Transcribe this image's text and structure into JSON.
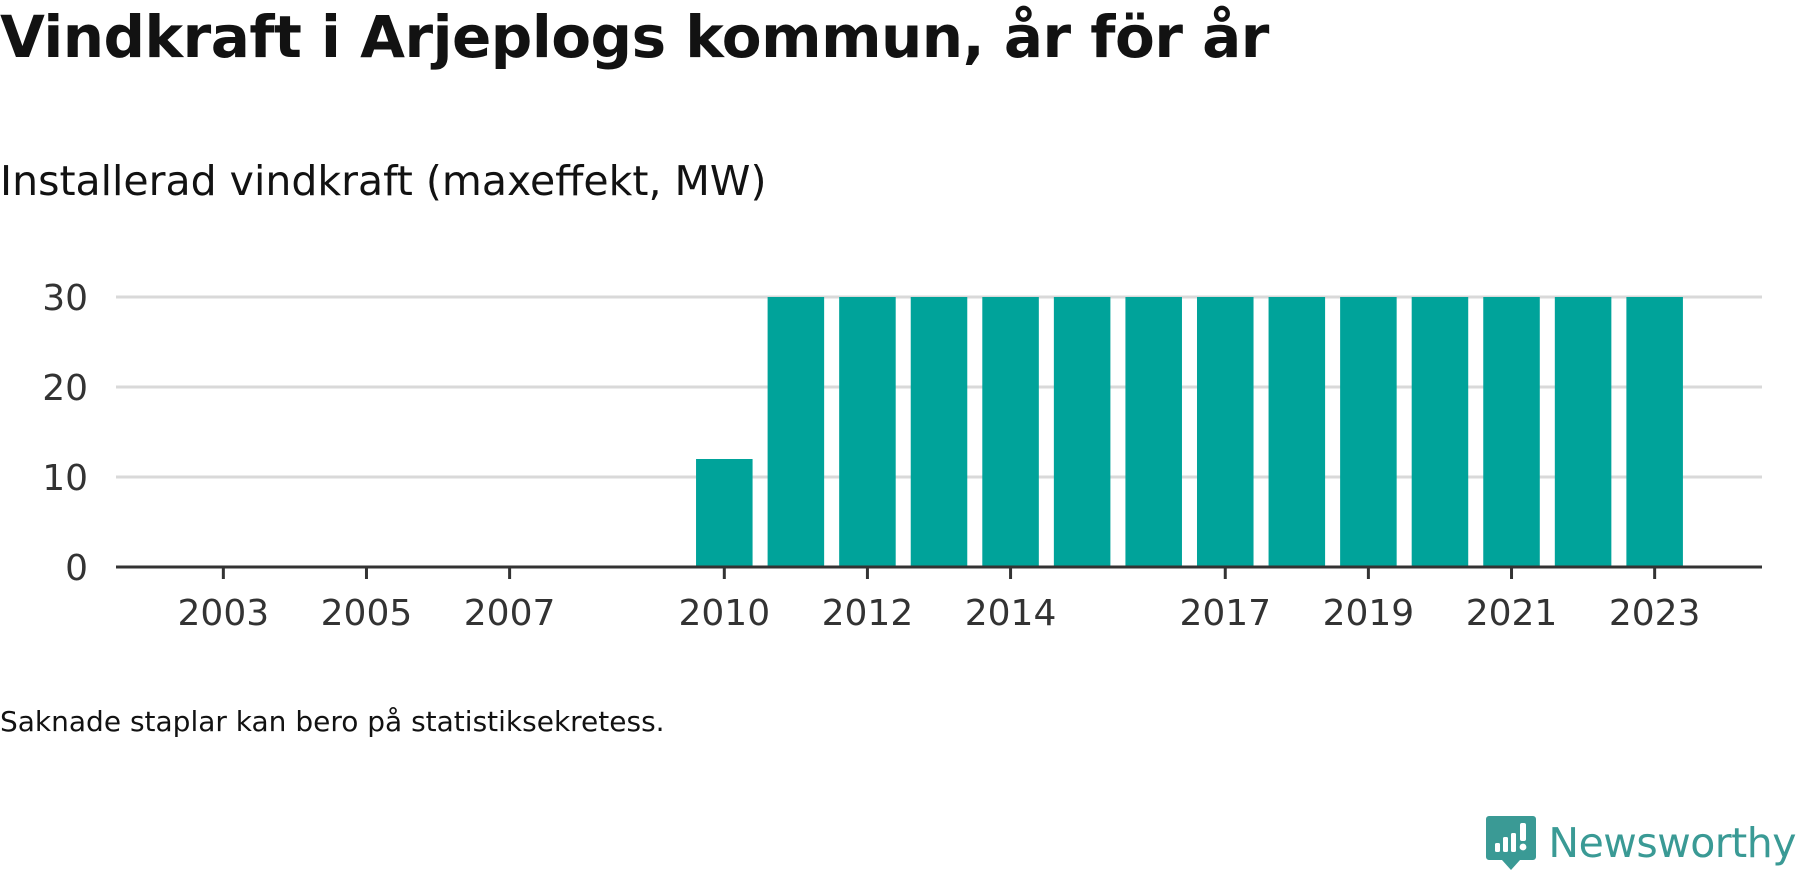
{
  "title": "Vindkraft i Arjeplogs kommun, år för år",
  "subtitle": "Installerad vindkraft (maxeffekt, MW)",
  "footnote": "Saknade staplar kan bero på statistiksekretess.",
  "brand": {
    "name": "Newsworthy",
    "icon": "newsworthy-logo-icon",
    "color": "#3a9a95"
  },
  "colors": {
    "bar": "#00a39a",
    "grid": "#d9d9d9",
    "axis": "#333333",
    "text": "#121212"
  },
  "chart_data": {
    "type": "bar",
    "title": "Vindkraft i Arjeplogs kommun, år för år",
    "subtitle": "Installerad vindkraft (maxeffekt, MW)",
    "xlabel": "",
    "ylabel": "",
    "categories": [
      "2010",
      "2011",
      "2012",
      "2013",
      "2014",
      "2015",
      "2016",
      "2017",
      "2018",
      "2019",
      "2020",
      "2021",
      "2022",
      "2023"
    ],
    "values": [
      12,
      30,
      30,
      30,
      30,
      30,
      30,
      30,
      30,
      30,
      30,
      30,
      30,
      30
    ],
    "xlim": [
      2001.5,
      2024.5
    ],
    "ylim": [
      0,
      30
    ],
    "yticks": [
      0,
      10,
      20,
      30
    ],
    "xticks": [
      "2003",
      "2005",
      "2007",
      "2010",
      "2012",
      "2014",
      "2017",
      "2019",
      "2021",
      "2023"
    ],
    "grid": "horizontal",
    "legend": "none"
  }
}
